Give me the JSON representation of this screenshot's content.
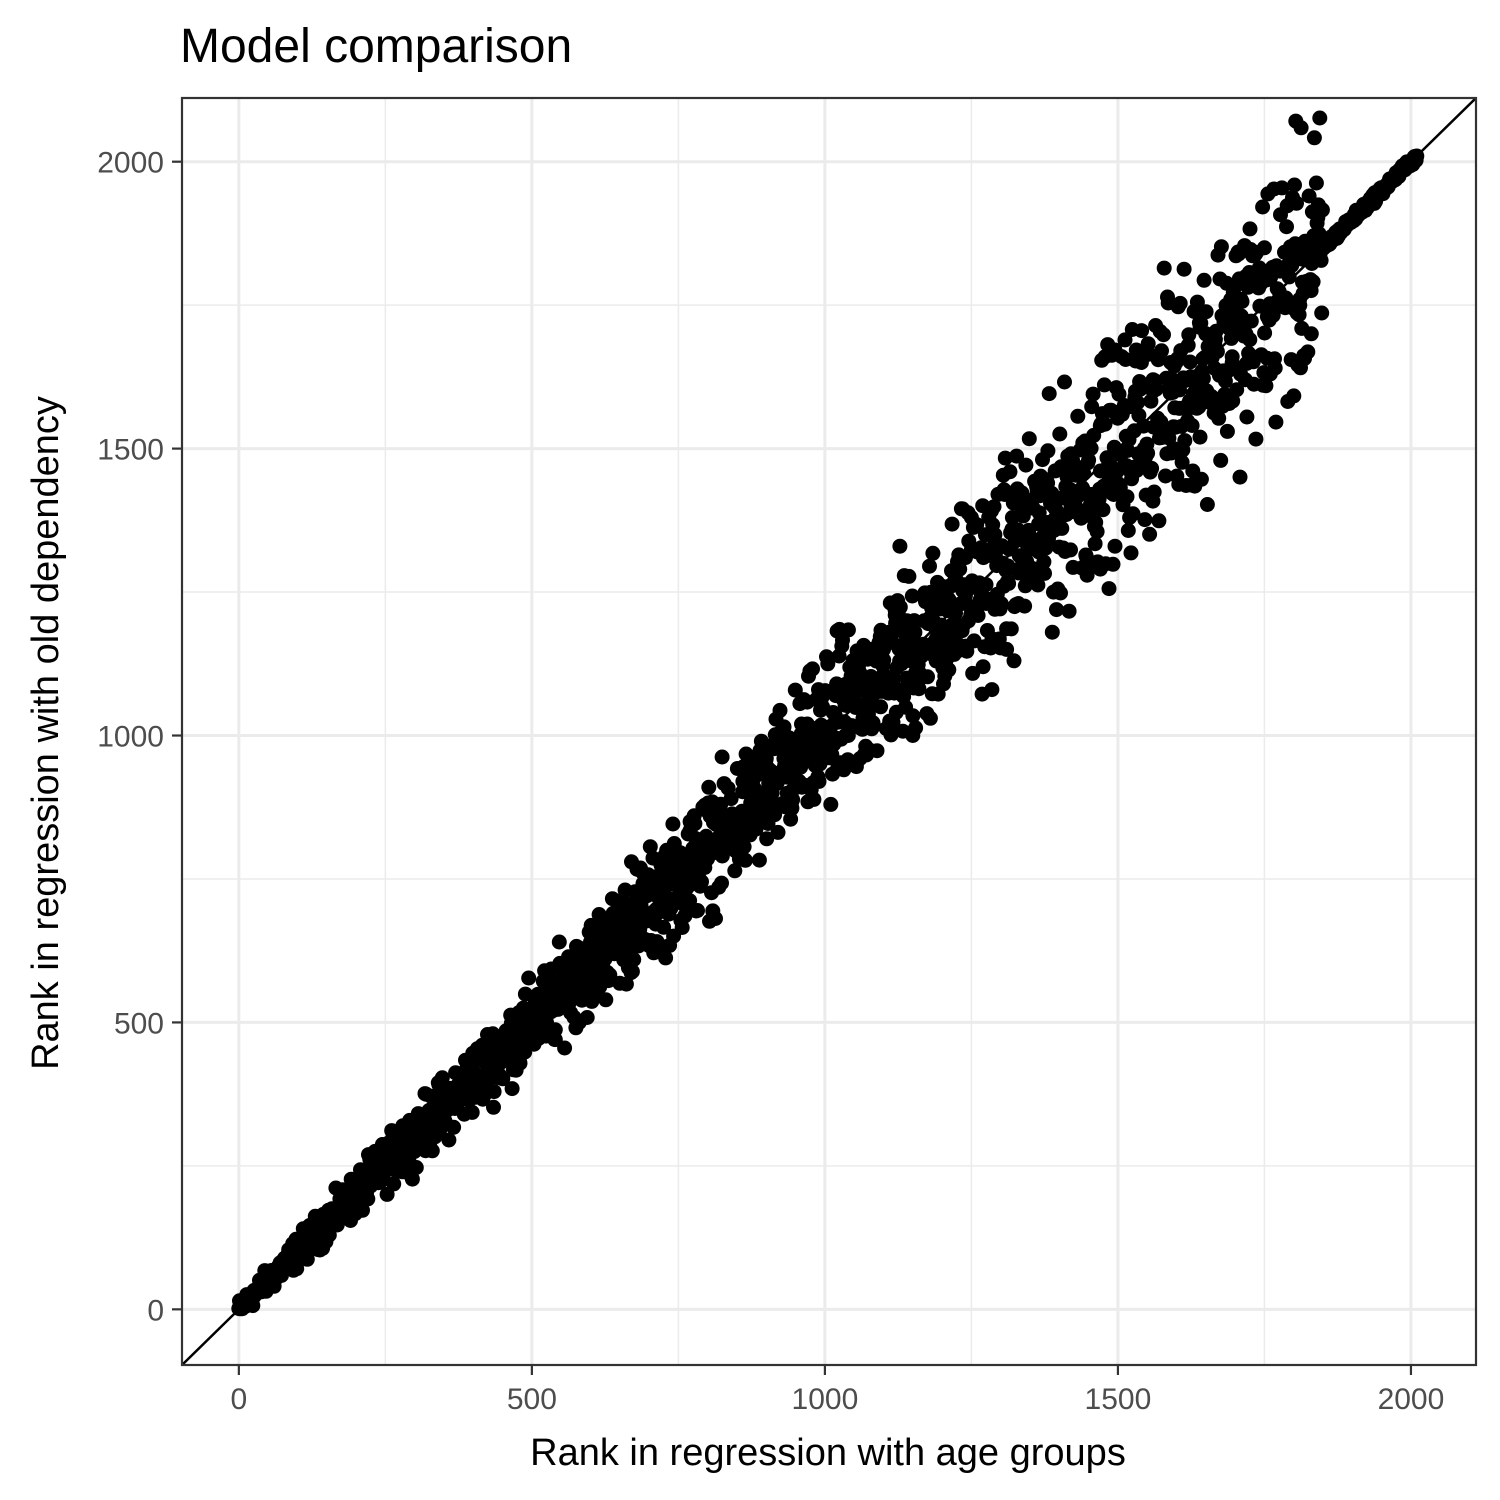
{
  "chart_data": {
    "type": "scatter",
    "title": "Model comparison",
    "xlabel": "Rank in regression with age groups",
    "ylabel": "Rank in regression with old dependency",
    "xlim": [
      -97,
      2111
    ],
    "ylim": [
      -97,
      2111
    ],
    "xticks": [
      0,
      500,
      1000,
      1500,
      2000
    ],
    "yticks": [
      0,
      500,
      1000,
      1500,
      2000
    ],
    "x_tick_labels": [
      "0",
      "500",
      "1000",
      "1500",
      "2000"
    ],
    "y_tick_labels": [
      "0",
      "500",
      "1000",
      "1500",
      "2000"
    ],
    "grid": true,
    "reference_line": {
      "type": "identity",
      "slope": 1,
      "intercept": 0
    },
    "point_color": "#000000",
    "n_points": 2014,
    "points": [
      [
        2,
        1
      ],
      [
        15,
        14
      ],
      [
        30,
        32
      ],
      [
        45,
        48
      ],
      [
        60,
        63
      ],
      [
        75,
        70
      ],
      [
        90,
        95
      ],
      [
        105,
        100
      ],
      [
        120,
        130
      ],
      [
        135,
        128
      ],
      [
        150,
        160
      ],
      [
        165,
        158
      ],
      [
        180,
        190
      ],
      [
        195,
        187
      ],
      [
        210,
        225
      ],
      [
        225,
        215
      ],
      [
        240,
        255
      ],
      [
        255,
        245
      ],
      [
        270,
        290
      ],
      [
        285,
        275
      ],
      [
        300,
        320
      ],
      [
        315,
        302
      ],
      [
        330,
        350
      ],
      [
        345,
        335
      ],
      [
        360,
        385
      ],
      [
        375,
        362
      ],
      [
        390,
        410
      ],
      [
        405,
        395
      ],
      [
        420,
        445
      ],
      [
        435,
        420
      ],
      [
        450,
        470
      ],
      [
        465,
        455
      ],
      [
        480,
        510
      ],
      [
        495,
        480
      ],
      [
        510,
        525
      ],
      [
        525,
        500
      ],
      [
        540,
        560
      ],
      [
        555,
        535
      ],
      [
        570,
        610
      ],
      [
        585,
        565
      ],
      [
        600,
        640
      ],
      [
        615,
        595
      ],
      [
        630,
        660
      ],
      [
        645,
        625
      ],
      [
        660,
        700
      ],
      [
        675,
        655
      ],
      [
        690,
        720
      ],
      [
        705,
        680
      ],
      [
        720,
        760
      ],
      [
        735,
        715
      ],
      [
        750,
        790
      ],
      [
        765,
        735
      ],
      [
        780,
        820
      ],
      [
        795,
        770
      ],
      [
        810,
        860
      ],
      [
        825,
        790
      ],
      [
        840,
        890
      ],
      [
        855,
        840
      ],
      [
        870,
        920
      ],
      [
        885,
        855
      ],
      [
        900,
        960
      ],
      [
        915,
        870
      ],
      [
        930,
        990
      ],
      [
        945,
        905
      ],
      [
        960,
        1020
      ],
      [
        975,
        960
      ],
      [
        990,
        1060
      ],
      [
        1005,
        970
      ],
      [
        1020,
        1080
      ],
      [
        1035,
        1000
      ],
      [
        1050,
        1110
      ],
      [
        1065,
        1030
      ],
      [
        1080,
        1150
      ],
      [
        1095,
        1050
      ],
      [
        1110,
        1180
      ],
      [
        1125,
        1080
      ],
      [
        1140,
        1200
      ],
      [
        1155,
        1110
      ],
      [
        1170,
        1240
      ],
      [
        1185,
        1140
      ],
      [
        1200,
        1260
      ],
      [
        1215,
        1170
      ],
      [
        1230,
        1290
      ],
      [
        1245,
        1200
      ],
      [
        1260,
        1320
      ],
      [
        1275,
        1230
      ],
      [
        1290,
        1350
      ],
      [
        1305,
        1260
      ],
      [
        1320,
        1380
      ],
      [
        1335,
        1290
      ],
      [
        1350,
        1410
      ],
      [
        1365,
        1320
      ],
      [
        1380,
        1440
      ],
      [
        1395,
        1360
      ],
      [
        1410,
        1470
      ],
      [
        1425,
        1390
      ],
      [
        1440,
        1510
      ],
      [
        1455,
        1420
      ],
      [
        1470,
        1540
      ],
      [
        1485,
        1450
      ],
      [
        1500,
        1560
      ],
      [
        1515,
        1470
      ],
      [
        1530,
        1600
      ],
      [
        1545,
        1500
      ],
      [
        1560,
        1620
      ],
      [
        1575,
        1540
      ],
      [
        1590,
        1650
      ],
      [
        1605,
        1570
      ],
      [
        1620,
        1680
      ],
      [
        1635,
        1600
      ],
      [
        1650,
        1700
      ],
      [
        1665,
        1640
      ],
      [
        1680,
        1730
      ],
      [
        1695,
        1660
      ],
      [
        1710,
        1760
      ],
      [
        1725,
        1690
      ],
      [
        1740,
        1780
      ],
      [
        1755,
        1730
      ],
      [
        1770,
        1810
      ],
      [
        1785,
        1760
      ],
      [
        1800,
        1830
      ],
      [
        1815,
        1790
      ],
      [
        1830,
        1850
      ],
      [
        1845,
        1840
      ],
      [
        1860,
        1862
      ],
      [
        1875,
        1876
      ],
      [
        1890,
        1890
      ],
      [
        1905,
        1905
      ],
      [
        1920,
        1920
      ],
      [
        1935,
        1935
      ],
      [
        1950,
        1950
      ],
      [
        1965,
        1965
      ],
      [
        1980,
        1980
      ],
      [
        1995,
        1995
      ],
      [
        2010,
        2010
      ],
      [
        1025,
        1185
      ],
      [
        1285,
        1080
      ],
      [
        1470,
        1290
      ],
      [
        1235,
        1395
      ],
      [
        1005,
        1125
      ],
      [
        1128,
        1330
      ],
      [
        1388,
        1180
      ],
      [
        1478,
        1660
      ],
      [
        1595,
        1500
      ],
      [
        1640,
        1520
      ],
      [
        1695,
        1650
      ],
      [
        1718,
        1800
      ],
      [
        1750,
        1850
      ],
      [
        1790,
        1820
      ],
      [
        1810,
        1760
      ],
      [
        1830,
        1700
      ],
      [
        1760,
        1630
      ],
      [
        1720,
        1555
      ],
      [
        1700,
        1640
      ],
      [
        1690,
        1580
      ],
      [
        1650,
        1700
      ],
      [
        1560,
        1600
      ],
      [
        1540,
        1650
      ],
      [
        1520,
        1380
      ],
      [
        1495,
        1330
      ],
      [
        1450,
        1480
      ],
      [
        1420,
        1400
      ],
      [
        1390,
        1250
      ],
      [
        1360,
        1290
      ],
      [
        1330,
        1230
      ],
      [
        1310,
        1150
      ],
      [
        1300,
        1300
      ],
      [
        1290,
        1220
      ],
      [
        1270,
        1120
      ],
      [
        1250,
        1380
      ],
      [
        1240,
        1310
      ],
      [
        1230,
        1190
      ],
      [
        1210,
        1150
      ],
      [
        1190,
        1130
      ],
      [
        1180,
        1030
      ],
      [
        1150,
        1000
      ],
      [
        1140,
        1100
      ],
      [
        1120,
        1210
      ],
      [
        1100,
        1150
      ],
      [
        1080,
        1070
      ],
      [
        1060,
        960
      ],
      [
        1040,
        1000
      ],
      [
        1020,
        1090
      ],
      [
        1010,
        880
      ],
      [
        990,
        920
      ],
      [
        970,
        1020
      ],
      [
        950,
        940
      ],
      [
        930,
        960
      ],
      [
        910,
        900
      ],
      [
        890,
        900
      ],
      [
        870,
        960
      ],
      [
        860,
        920
      ],
      [
        850,
        850
      ],
      [
        830,
        820
      ],
      [
        810,
        860
      ],
      [
        790,
        810
      ],
      [
        770,
        850
      ],
      [
        750,
        740
      ],
      [
        730,
        800
      ],
      [
        710,
        690
      ],
      [
        700,
        730
      ],
      [
        690,
        760
      ],
      [
        680,
        710
      ],
      [
        670,
        780
      ],
      [
        650,
        690
      ],
      [
        640,
        640
      ],
      [
        620,
        660
      ],
      [
        600,
        600
      ],
      [
        580,
        630
      ],
      [
        570,
        560
      ],
      [
        560,
        600
      ],
      [
        540,
        470
      ],
      [
        520,
        520
      ],
      [
        500,
        500
      ],
      [
        490,
        480
      ],
      [
        480,
        460
      ],
      [
        460,
        460
      ],
      [
        440,
        420
      ],
      [
        420,
        400
      ],
      [
        400,
        410
      ],
      [
        380,
        390
      ],
      [
        360,
        370
      ],
      [
        340,
        340
      ],
      [
        320,
        300
      ],
      [
        300,
        320
      ],
      [
        290,
        260
      ],
      [
        280,
        320
      ],
      [
        270,
        240
      ],
      [
        260,
        250
      ],
      [
        240,
        250
      ],
      [
        220,
        225
      ],
      [
        200,
        205
      ],
      [
        180,
        180
      ],
      [
        160,
        150
      ],
      [
        140,
        150
      ],
      [
        120,
        115
      ],
      [
        100,
        100
      ],
      [
        80,
        85
      ],
      [
        60,
        60
      ],
      [
        40,
        38
      ],
      [
        20,
        22
      ],
      [
        5,
        3
      ]
    ]
  }
}
